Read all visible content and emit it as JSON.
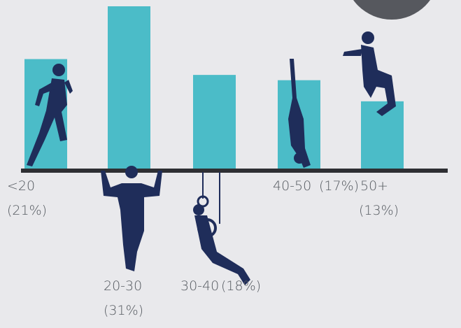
{
  "chart_data": {
    "type": "bar",
    "categories": [
      "<20",
      "20-30",
      "30-40",
      "40-50",
      "50+"
    ],
    "values": [
      21,
      31,
      18,
      17,
      13
    ],
    "value_labels": [
      "(21%)",
      "(31%)",
      "(18%)",
      "(17%)",
      "(13%)"
    ],
    "color": "#4bbcc8"
  }
}
